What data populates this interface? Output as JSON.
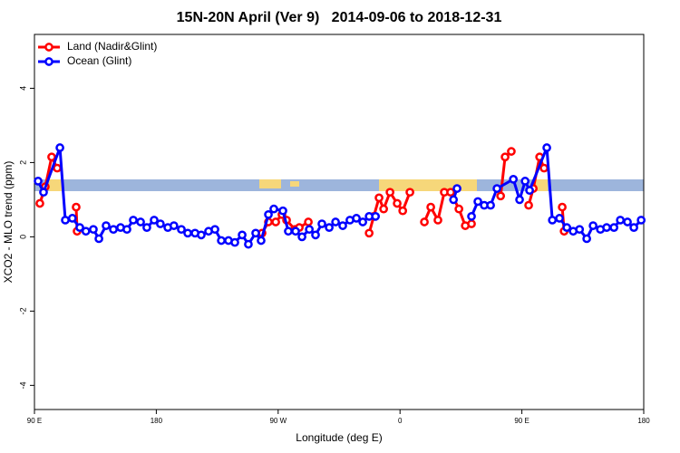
{
  "chart_data": {
    "type": "line",
    "title": "15N-20N April (Ver 9)   2014-09-06 to 2018-12-31",
    "x_label": "Longitude (deg E)",
    "y_label": "XCO2 - MLO trend (ppm)",
    "xlim": [
      90,
      540
    ],
    "xticks": [
      {
        "value": 90,
        "label": "90 E"
      },
      {
        "value": 180,
        "label": "180"
      },
      {
        "value": 270,
        "label": "90 W"
      },
      {
        "value": 360,
        "label": "0"
      },
      {
        "value": 450,
        "label": "90 E"
      },
      {
        "value": 540,
        "label": "180"
      }
    ],
    "ylim": [
      -4.65,
      5.45
    ],
    "yticks": [
      4,
      2,
      0,
      -2,
      -4
    ],
    "legend": "top-left",
    "series": [
      {
        "name": "Land (Nadir&Glint)",
        "color": "#ff0000",
        "x": [
          94,
          98,
          102.7,
          106.8,
          null,
          120.8,
          121.5,
          null,
          258.1,
          262.8,
          268.2,
          272.8,
          276.2,
          282.3,
          285.6,
          292.3,
          null,
          337.2,
          340.6,
          344.5,
          347.9,
          352.6,
          357.9,
          362,
          367.3,
          null,
          378,
          382.7,
          388,
          392.7,
          397.4,
          403.5,
          408.2,
          412.8,
          null,
          434.3,
          437.6,
          442.2,
          null,
          455,
          458.4,
          463.1,
          466.4,
          null,
          479.8,
          481.2
        ],
        "values": [
          0.9,
          1.35,
          2.15,
          1.85,
          null,
          0.8,
          0.15,
          null,
          0.1,
          0.4,
          0.4,
          0.6,
          0.45,
          0.2,
          0.25,
          0.4,
          null,
          0.1,
          0.55,
          1.05,
          0.75,
          1.2,
          0.9,
          0.7,
          1.2,
          null,
          0.4,
          0.8,
          0.45,
          1.2,
          1.2,
          0.75,
          0.3,
          0.35,
          null,
          1.1,
          2.15,
          2.3,
          null,
          0.85,
          1.3,
          2.15,
          1.85,
          null,
          0.8,
          0.15
        ]
      },
      {
        "name": "Ocean (Glint)",
        "color": "#0000ff",
        "x": [
          92.7,
          96.7,
          108.8,
          112.8,
          118,
          123.5,
          128,
          133.5,
          137.6,
          142.9,
          148.3,
          153.6,
          158.3,
          163,
          168.4,
          173,
          178.4,
          183,
          188.5,
          193,
          198.5,
          203.2,
          208.6,
          213.2,
          218.6,
          223.3,
          228,
          233.3,
          238,
          243.4,
          248,
          253.4,
          257.4,
          262.8,
          266.8,
          273.5,
          277.5,
          282.9,
          287.6,
          293,
          297.6,
          302.3,
          307.7,
          312.4,
          317.7,
          323,
          327.8,
          332.5,
          337.2,
          341.9,
          null,
          399.5,
          402.1,
          null,
          412.8,
          417.5,
          422.2,
          426.9,
          431.6,
          443.7,
          448.3,
          452.4,
          455.7,
          468.4,
          472.5,
          477.8,
          483.2,
          487.9,
          492.6,
          497.9,
          502.6,
          508,
          512.6,
          518,
          522.7,
          528,
          532.7,
          538.1
        ],
        "values": [
          1.5,
          1.2,
          2.4,
          0.45,
          0.5,
          0.25,
          0.15,
          0.2,
          -0.05,
          0.3,
          0.2,
          0.25,
          0.2,
          0.45,
          0.4,
          0.25,
          0.45,
          0.35,
          0.25,
          0.3,
          0.2,
          0.1,
          0.1,
          0.05,
          0.15,
          0.2,
          -0.1,
          -0.1,
          -0.15,
          0.05,
          -0.2,
          0.1,
          -0.1,
          0.6,
          0.75,
          0.7,
          0.15,
          0.15,
          0.0,
          0.2,
          0.05,
          0.35,
          0.25,
          0.4,
          0.3,
          0.45,
          0.5,
          0.4,
          0.55,
          0.55,
          null,
          1.0,
          1.3,
          null,
          0.55,
          0.95,
          0.85,
          0.85,
          1.3,
          1.55,
          1.0,
          1.5,
          1.25,
          2.4,
          0.45,
          0.5,
          0.25,
          0.15,
          0.2,
          -0.05,
          0.3,
          0.2,
          0.25,
          0.25,
          0.45,
          0.4,
          0.25,
          0.45
        ]
      }
    ]
  }
}
